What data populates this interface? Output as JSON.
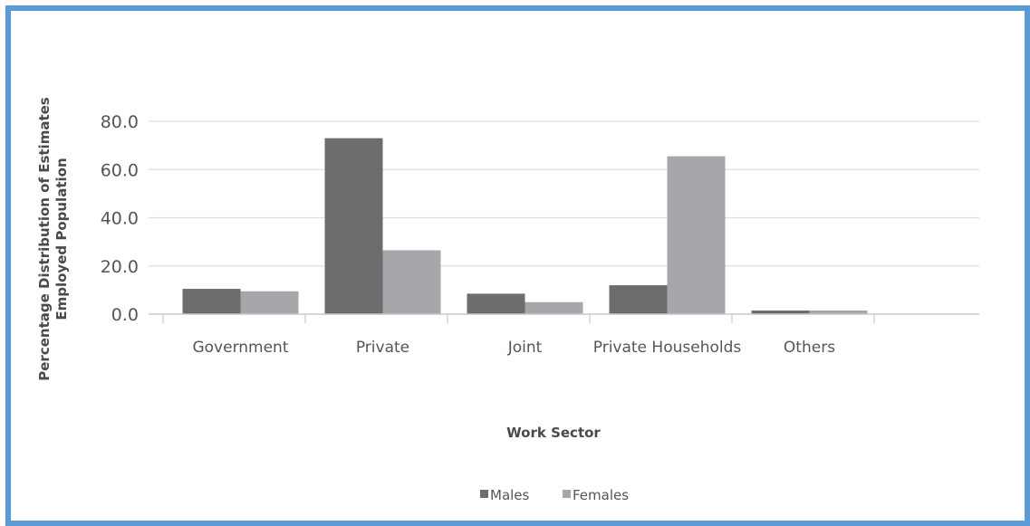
{
  "chart_data": {
    "type": "bar",
    "title": "",
    "xlabel": "Work Sector",
    "ylabel_lines": [
      "Percentage Distribution of Estimates",
      "Employed Population"
    ],
    "categories": [
      "Government",
      "Private",
      "Joint",
      "Private Households",
      "Others"
    ],
    "series": [
      {
        "name": "Males",
        "color": "#6d6d6d",
        "values": [
          10.5,
          73.0,
          8.5,
          12.0,
          1.5
        ]
      },
      {
        "name": "Females",
        "color": "#a6a7ab",
        "values": [
          9.5,
          26.5,
          5.0,
          65.5,
          1.5
        ]
      }
    ],
    "ylim": [
      0,
      80
    ],
    "yticks": [
      0,
      20,
      40,
      60,
      80
    ],
    "ytick_labels": [
      "0.0",
      "20.0",
      "40.0",
      "60.0",
      "80.0"
    ],
    "grid": true,
    "legend_position": "bottom-center"
  }
}
